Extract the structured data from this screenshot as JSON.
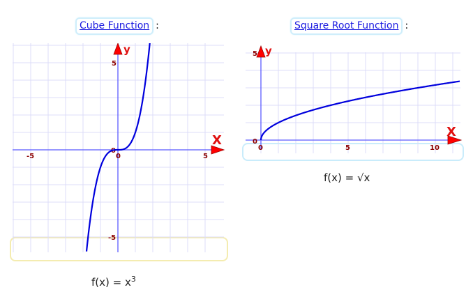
{
  "cube": {
    "title": "Cube Function",
    "colon": ":",
    "formula_base": "f(x) = x",
    "formula_exp": "3",
    "axis_x_label": "X",
    "axis_y_label": "y",
    "ticks": {
      "x_neg": "-5",
      "x_zero": "0",
      "x_pos": "5",
      "y_pos": "5",
      "y_zero": "0",
      "y_neg": "-5"
    }
  },
  "sqrt": {
    "title": "Square Root Function",
    "colon": ":",
    "formula": "f(x) = √x",
    "axis_x_label": "X",
    "axis_y_label": "y",
    "ticks": {
      "x_zero": "0",
      "x_5": "5",
      "x_10": "10",
      "y_5": "5",
      "y_zero": "0"
    }
  },
  "colors": {
    "curve": "#0000dd",
    "axis": "#5b5bff",
    "grid": "#dcdcf8",
    "tick_label": "#8b0000",
    "arrow": "#ff0000",
    "link": "#1a1ae0"
  }
}
